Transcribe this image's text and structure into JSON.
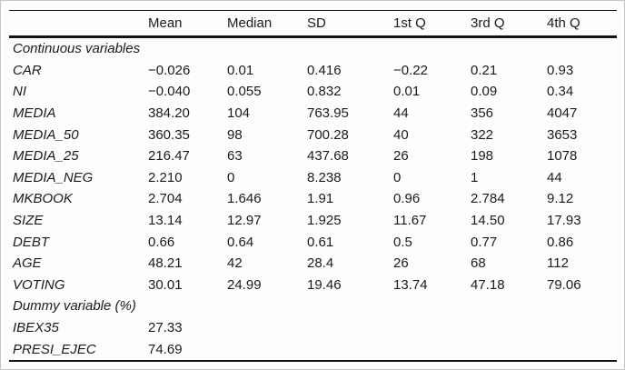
{
  "page": {
    "background": "#fdfdfd",
    "border_color": "#c6c6c6",
    "text_color": "#1b1b1b",
    "rule_color": "#141414"
  },
  "table": {
    "columns": [
      "",
      "Mean",
      "Median",
      "SD",
      "1st Q",
      "3rd Q",
      "4th Q"
    ],
    "sections": [
      {
        "header": "Continuous variables",
        "rows": [
          {
            "label": "CAR",
            "values": [
              "−0.026",
              "0.01",
              "0.416",
              "−0.22",
              "0.21",
              "0.93"
            ]
          },
          {
            "label": "NI",
            "values": [
              "−0.040",
              "0.055",
              "0.832",
              "0.01",
              "0.09",
              "0.34"
            ]
          },
          {
            "label": "MEDIA",
            "values": [
              "384.20",
              "104",
              "763.95",
              "44",
              "356",
              "4047"
            ]
          },
          {
            "label": "MEDIA_50",
            "values": [
              "360.35",
              "98",
              "700.28",
              "40",
              "322",
              "3653"
            ]
          },
          {
            "label": "MEDIA_25",
            "values": [
              "216.47",
              "63",
              "437.68",
              "26",
              "198",
              "1078"
            ]
          },
          {
            "label": "MEDIA_NEG",
            "values": [
              "2.210",
              "0",
              "8.238",
              "0",
              "1",
              "44"
            ]
          },
          {
            "label": "MKBOOK",
            "values": [
              "2.704",
              "1.646",
              "1.91",
              "0.96",
              "2.784",
              "9.12"
            ]
          },
          {
            "label": "SIZE",
            "values": [
              "13.14",
              "12.97",
              "1.925",
              "11.67",
              "14.50",
              "17.93"
            ]
          },
          {
            "label": "DEBT",
            "values": [
              "0.66",
              "0.64",
              "0.61",
              "0.5",
              "0.77",
              "0.86"
            ]
          },
          {
            "label": "AGE",
            "values": [
              "48.21",
              "42",
              "28.4",
              "26",
              "68",
              "112"
            ]
          },
          {
            "label": "VOTING",
            "values": [
              "30.01",
              "24.99",
              "19.46",
              "13.74",
              "47.18",
              "79.06"
            ]
          }
        ]
      },
      {
        "header": "Dummy variable (%)",
        "rows": [
          {
            "label": "IBEX35",
            "values": [
              "27.33",
              "",
              "",
              "",
              "",
              ""
            ]
          },
          {
            "label": "PRESI_EJEC",
            "values": [
              "74.69",
              "",
              "",
              "",
              "",
              ""
            ]
          }
        ]
      }
    ]
  }
}
